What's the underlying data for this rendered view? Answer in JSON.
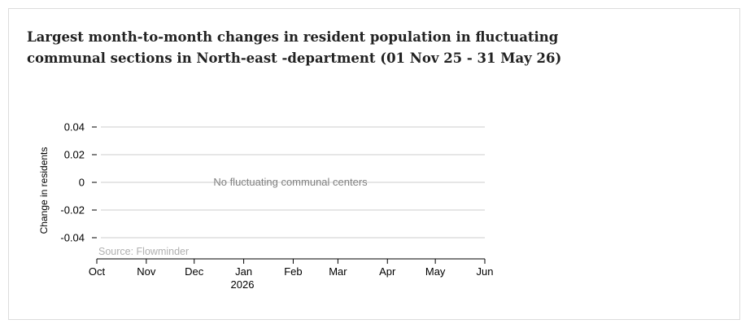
{
  "title": "Largest month-to-month changes in resident population in fluctuating communal sections in North-east -department (01 Nov 25 - 31 May 26)",
  "no_data_message": "No fluctuating communal centers",
  "source": "Source: Flowminder",
  "colors": {
    "grid": "#cccccc",
    "axis": "#000000",
    "text": "#000000",
    "title": "#222222",
    "message": "#808080",
    "source": "#b0b0b0",
    "border": "#dcdcdc"
  },
  "chart_data": {
    "type": "line",
    "title": "Largest month-to-month changes in resident population in fluctuating communal sections in North-east -department (01 Nov 25 - 31 May 26)",
    "xlabel": "",
    "ylabel": "Change in residents",
    "series": [],
    "grid": true,
    "x_ticks": [
      "Oct",
      "Nov",
      "Dec",
      "Jan",
      "Feb",
      "Mar",
      "Apr",
      "May",
      "Jun"
    ],
    "x_year_label": "2026",
    "x_range": [
      "2025-10-01",
      "2026-06-01"
    ],
    "y_ticks": [
      0.04,
      0.02,
      0,
      -0.02,
      -0.04
    ],
    "y_tick_labels": [
      "0.04",
      "0.02",
      "0",
      "-0.02",
      "-0.04"
    ],
    "ylim": [
      -0.05,
      0.05
    ]
  }
}
